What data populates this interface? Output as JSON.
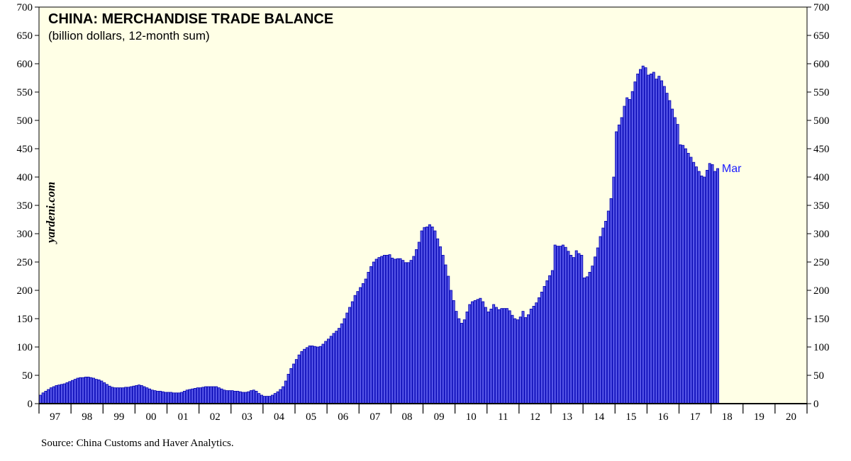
{
  "colors": {
    "plot_bg": "#ffffe6",
    "bar_fill": "#5757e8",
    "bar_stroke": "#0000b0",
    "label": "#1a1aff",
    "zero_line": "#000000"
  },
  "chart_data": {
    "type": "bar",
    "title": "CHINA: MERCHANDISE TRADE BALANCE",
    "subtitle": "(billion dollars, 12-month sum)",
    "watermark": "yardeni.com",
    "source": "Source: China Customs and Haver Analytics.",
    "end_label": "Mar",
    "ylim": [
      0,
      700
    ],
    "yticks": [
      0,
      50,
      100,
      150,
      200,
      250,
      300,
      350,
      400,
      450,
      500,
      550,
      600,
      650,
      700
    ],
    "year_labels": [
      "97",
      "98",
      "99",
      "00",
      "01",
      "02",
      "03",
      "04",
      "05",
      "06",
      "07",
      "08",
      "09",
      "10",
      "11",
      "12",
      "13",
      "14",
      "15",
      "16",
      "17",
      "18",
      "19",
      "20"
    ],
    "x_start_year": 1997,
    "months_per_year": 12,
    "annual_values": {
      "1997": [
        15,
        19,
        22,
        25,
        28,
        30,
        32,
        33,
        34,
        35,
        37,
        39
      ],
      "1998": [
        41,
        43,
        45,
        46,
        46,
        47,
        47,
        46,
        45,
        43,
        42,
        40
      ],
      "1999": [
        37,
        34,
        31,
        29,
        28,
        28,
        28,
        28,
        29,
        29,
        30,
        31
      ],
      "2000": [
        32,
        33,
        32,
        30,
        28,
        26,
        24,
        23,
        22,
        22,
        21,
        20
      ],
      "2001": [
        20,
        20,
        19,
        19,
        19,
        20,
        22,
        24,
        25,
        26,
        27,
        28
      ],
      "2002": [
        28,
        29,
        30,
        30,
        30,
        30,
        30,
        28,
        26,
        24,
        23,
        23
      ],
      "2003": [
        23,
        22,
        22,
        21,
        20,
        20,
        21,
        23,
        24,
        22,
        18,
        15
      ],
      "2004": [
        13,
        13,
        13,
        15,
        18,
        21,
        25,
        30,
        40,
        52,
        62,
        70
      ],
      "2005": [
        78,
        86,
        92,
        96,
        99,
        102,
        102,
        101,
        100,
        101,
        105,
        110
      ],
      "2006": [
        114,
        119,
        124,
        128,
        133,
        141,
        150,
        160,
        170,
        180,
        191,
        198
      ],
      "2007": [
        205,
        212,
        220,
        232,
        242,
        250,
        255,
        258,
        260,
        262,
        262,
        263
      ],
      "2008": [
        257,
        255,
        256,
        256,
        253,
        249,
        249,
        253,
        260,
        272,
        285,
        305
      ],
      "2009": [
        311,
        312,
        316,
        312,
        305,
        291,
        277,
        262,
        245,
        225,
        200,
        182
      ],
      "2010": [
        163,
        150,
        142,
        148,
        162,
        175,
        180,
        182,
        184,
        186,
        180,
        170
      ],
      "2011": [
        162,
        167,
        175,
        170,
        166,
        168,
        168,
        168,
        164,
        156,
        150,
        148
      ],
      "2012": [
        153,
        163,
        152,
        157,
        167,
        172,
        178,
        187,
        197,
        207,
        217,
        226
      ],
      "2013": [
        235,
        280,
        278,
        278,
        280,
        276,
        269,
        262,
        258,
        270,
        265,
        262
      ],
      "2014": [
        222,
        224,
        232,
        243,
        259,
        275,
        295,
        310,
        322,
        340,
        362,
        400
      ],
      "2015": [
        480,
        492,
        505,
        525,
        540,
        537,
        551,
        568,
        582,
        590,
        596,
        593
      ],
      "2016": [
        580,
        582,
        585,
        573,
        578,
        570,
        560,
        548,
        535,
        520,
        505,
        493
      ],
      "2017": [
        457,
        456,
        450,
        442,
        435,
        426,
        418,
        410,
        402,
        400,
        412,
        424
      ],
      "2018": [
        422,
        410,
        415
      ]
    }
  }
}
